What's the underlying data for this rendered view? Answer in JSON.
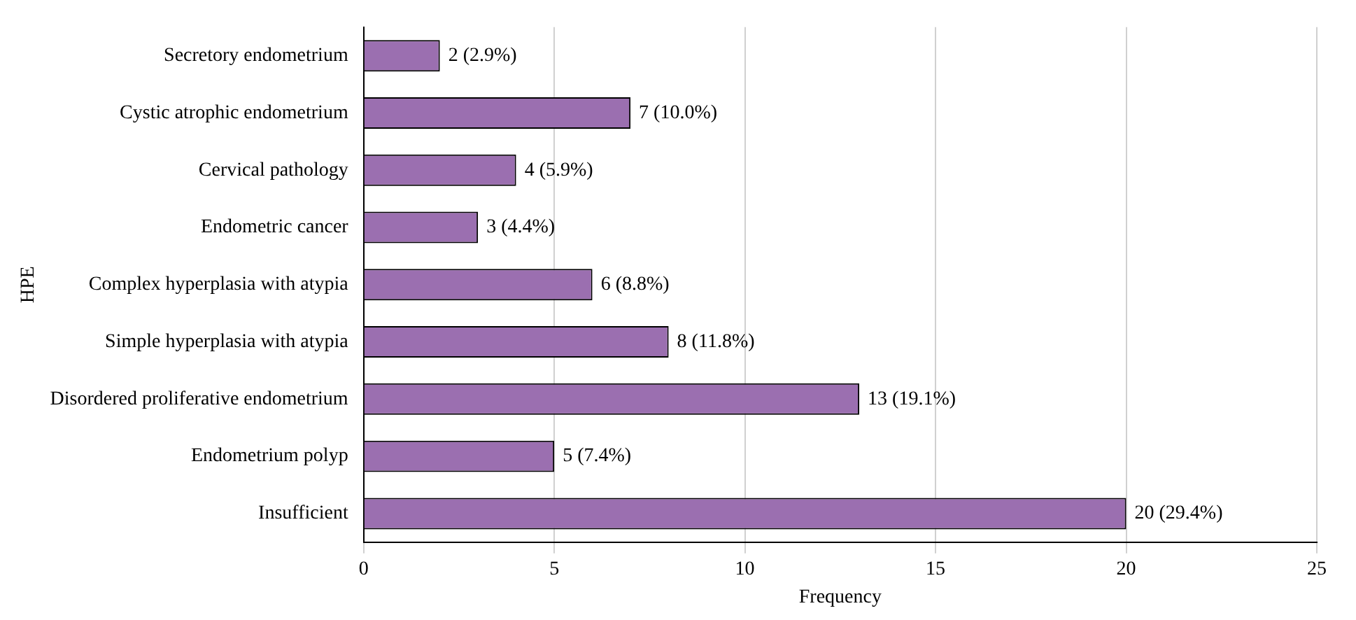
{
  "chart_data": {
    "type": "bar",
    "orientation": "horizontal",
    "xlabel": "Frequency",
    "ylabel": "HPE",
    "categories": [
      "Secretory endometrium",
      "Cystic atrophic endometrium",
      "Cervical pathology",
      "Endometric cancer",
      "Complex hyperplasia with atypia",
      "Simple hyperplasia with atypia",
      "Disordered proliferative endometrium",
      "Endometrium polyp",
      "Insufficient"
    ],
    "values": [
      2,
      7,
      4,
      3,
      6,
      8,
      13,
      5,
      20
    ],
    "value_labels": [
      "2 (2.9%)",
      "7 (10.0%)",
      "4 (5.9%)",
      "3 (4.4%)",
      "6 (8.8%)",
      "8 (11.8%)",
      "13 (19.1%)",
      "5 (7.4%)",
      "20 (29.4%)"
    ],
    "color": "#9b6fb0",
    "xlim": [
      0,
      25
    ],
    "xticks": [
      0,
      5,
      10,
      15,
      20,
      25
    ],
    "grid": "x",
    "legend": false
  }
}
